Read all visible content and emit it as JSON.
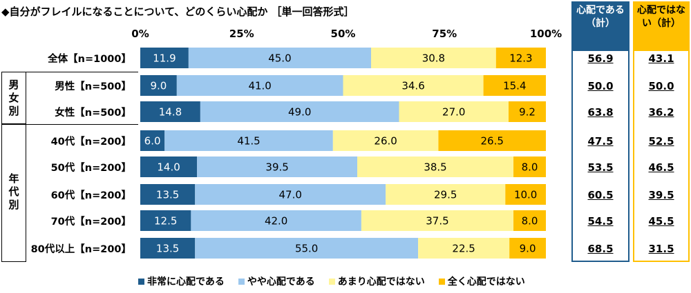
{
  "title": "◆自分がフレイルになることについて、どのくらい心配か ［単一回答形式］",
  "axis_ticks": [
    "0%",
    "25%",
    "50%",
    "75%",
    "100%"
  ],
  "groups": {
    "gender": "男女別",
    "age": "年代別"
  },
  "summary_headers": {
    "worried": "心配である（計）",
    "not_worried": "心配ではない（計）"
  },
  "colors": {
    "very": "#1F5C8C",
    "somewhat": "#9DC8EE",
    "not_much": "#FFF59A",
    "not_at_all": "#FFC000",
    "worried_border": "#1F5C8C",
    "not_worried_border": "#FFC000"
  },
  "chart_data": {
    "type": "bar",
    "orientation": "horizontal",
    "stacked": true,
    "xlim": [
      0,
      100
    ],
    "categories": [
      "全体【n=1000】",
      "男性【n=500】",
      "女性【n=500】",
      "40代【n=200】",
      "50代【n=200】",
      "60代【n=200】",
      "70代【n=200】",
      "80代以上【n=200】"
    ],
    "series": [
      {
        "name": "非常に心配である",
        "values": [
          11.9,
          9.0,
          14.8,
          6.0,
          14.0,
          13.5,
          12.5,
          13.5
        ]
      },
      {
        "name": "やや心配である",
        "values": [
          45.0,
          41.0,
          49.0,
          41.5,
          39.5,
          47.0,
          42.0,
          55.0
        ]
      },
      {
        "name": "あまり心配ではない",
        "values": [
          30.8,
          34.6,
          27.0,
          26.0,
          38.5,
          29.5,
          37.5,
          22.5
        ]
      },
      {
        "name": "全く心配ではない",
        "values": [
          12.3,
          15.4,
          9.2,
          26.5,
          8.0,
          10.0,
          8.0,
          9.0
        ]
      }
    ],
    "worried_total": [
      56.9,
      50.0,
      63.8,
      47.5,
      53.5,
      60.5,
      54.5,
      68.5
    ],
    "not_worried_total": [
      43.1,
      50.0,
      36.2,
      52.5,
      46.5,
      39.5,
      45.5,
      31.5
    ]
  }
}
